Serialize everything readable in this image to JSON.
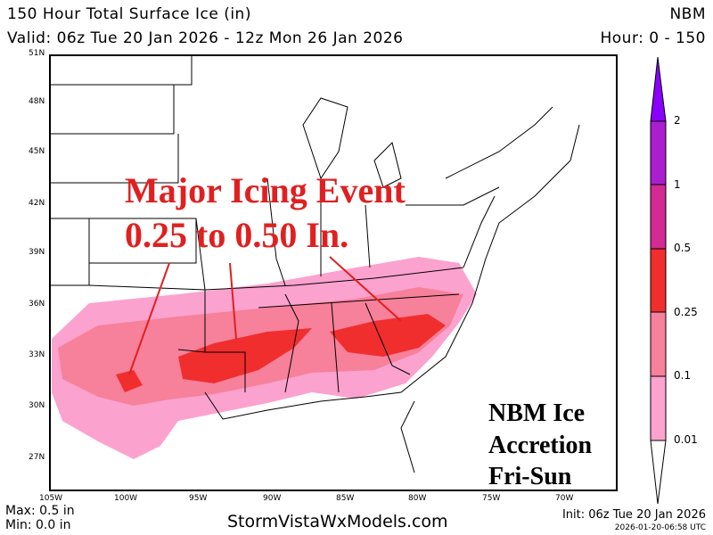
{
  "header": {
    "title": "150 Hour Total Surface Ice (in)",
    "model": "NBM",
    "valid": "Valid: 06z Tue 20 Jan 2026 - 12z Mon 26 Jan 2026",
    "hour": "Hour: 0 - 150"
  },
  "lat_labels": [
    "51N",
    "48N",
    "45N",
    "42N",
    "39N",
    "36N",
    "33N",
    "30N",
    "27N"
  ],
  "lon_labels": [
    "105W",
    "100W",
    "95W",
    "90W",
    "85W",
    "80W",
    "75W",
    "70W"
  ],
  "colorbar": {
    "labels": [
      "2",
      "1",
      "0.5",
      "0.25",
      "0.1",
      "0.01"
    ],
    "colors": [
      "#8a00ff",
      "#aa1ecf",
      "#d32a93",
      "#f02e2e",
      "#f7809a",
      "#fba2cf",
      "#ffffff"
    ]
  },
  "annotations": {
    "headline1": "Major Icing Event",
    "headline2": "0.25 to 0.50 In.",
    "box1": "NBM Ice",
    "box2": "Accretion",
    "box3": "Fri-Sun"
  },
  "footer": {
    "max": "Max: 0.5 in",
    "min": "Min: 0.0 in",
    "site": "StormVistaWxModels.com",
    "init": "Init: 06z Tue 20 Jan 2026",
    "stamp": "2026-01-20-06:58 UTC"
  }
}
